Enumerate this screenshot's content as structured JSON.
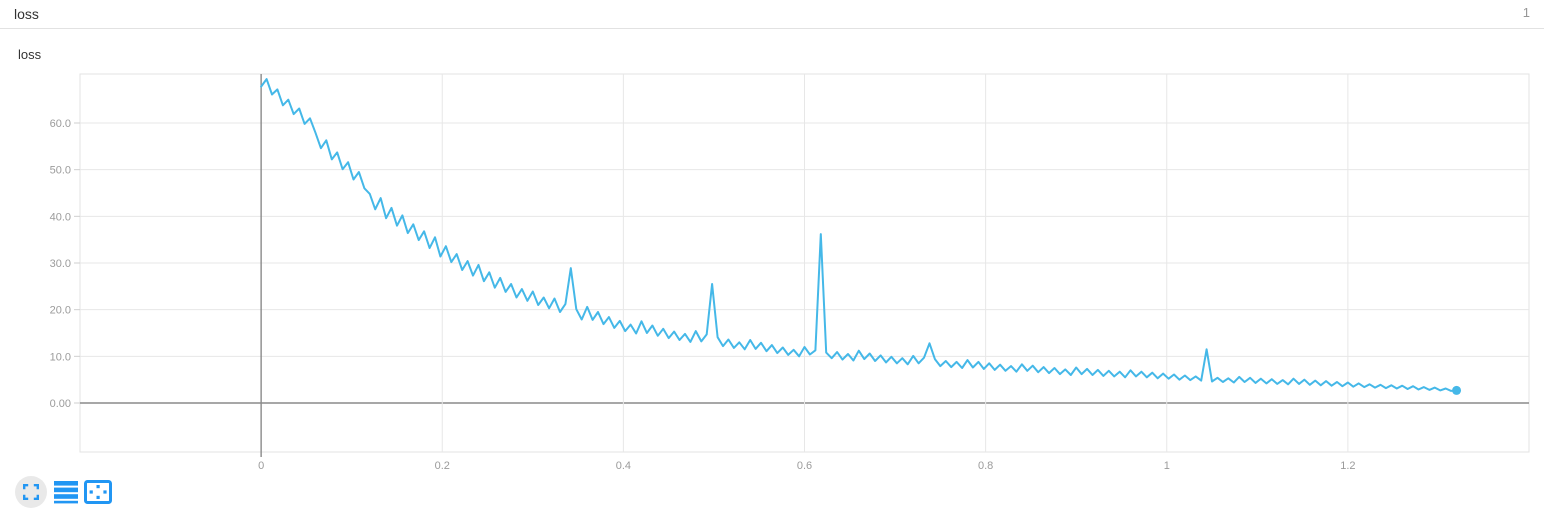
{
  "header": {
    "title": "loss",
    "page_indicator": "1"
  },
  "panel": {
    "title": "loss"
  },
  "toolbar": {
    "icons": [
      {
        "name": "fullscreen-icon"
      },
      {
        "name": "legend-list-icon"
      },
      {
        "name": "zoom-to-fit-icon"
      }
    ],
    "accent_color": "#2196f3"
  },
  "chart_data": {
    "type": "line",
    "title": "loss",
    "xlabel": "",
    "ylabel": "",
    "xlim": [
      -0.2,
      1.4
    ],
    "ylim": [
      -10.5,
      70.5
    ],
    "grid": true,
    "legend": "none",
    "xticks": [
      {
        "value": 0,
        "label": "0"
      },
      {
        "value": 0.2,
        "label": "0.2"
      },
      {
        "value": 0.4,
        "label": "0.4"
      },
      {
        "value": 0.6,
        "label": "0.6"
      },
      {
        "value": 0.8,
        "label": "0.8"
      },
      {
        "value": 1,
        "label": "1"
      },
      {
        "value": 1.2,
        "label": "1.2"
      }
    ],
    "yticks": [
      {
        "value": 0,
        "label": "0.00"
      },
      {
        "value": 10,
        "label": "10.0"
      },
      {
        "value": 20,
        "label": "20.0"
      },
      {
        "value": 30,
        "label": "30.0"
      },
      {
        "value": 40,
        "label": "40.0"
      },
      {
        "value": 50,
        "label": "50.0"
      },
      {
        "value": 60,
        "label": "60.0"
      }
    ],
    "style": {
      "grid_color": "#e7e7e7",
      "axis_color": "#8a8a8a",
      "border_color": "#e3e3e3",
      "tick_color": "#cfcfcf",
      "background": "#ffffff"
    },
    "series": [
      {
        "name": "loss",
        "color": "#45b8e8",
        "endpoint_dot": true,
        "x_start": 0,
        "x_step": 0.006,
        "values": [
          67.8,
          69.4,
          66.1,
          67.2,
          63.8,
          65.0,
          61.9,
          63.1,
          59.8,
          61.0,
          57.9,
          54.6,
          56.3,
          52.2,
          53.7,
          50.1,
          51.6,
          47.9,
          49.5,
          46.0,
          44.8,
          41.5,
          43.9,
          39.6,
          41.8,
          38.0,
          40.2,
          36.4,
          38.3,
          34.9,
          36.8,
          33.2,
          35.5,
          31.4,
          33.6,
          30.2,
          31.9,
          28.5,
          30.4,
          27.3,
          29.6,
          26.1,
          28.0,
          24.7,
          26.8,
          23.8,
          25.5,
          22.6,
          24.4,
          21.9,
          23.9,
          21.0,
          22.6,
          20.3,
          22.4,
          19.5,
          21.2,
          28.9,
          20.1,
          17.9,
          20.6,
          17.8,
          19.5,
          16.9,
          18.4,
          16.1,
          17.6,
          15.4,
          16.8,
          14.9,
          17.5,
          15.0,
          16.6,
          14.4,
          15.9,
          13.9,
          15.3,
          13.5,
          14.8,
          13.1,
          15.4,
          13.2,
          14.7,
          25.5,
          14.1,
          12.2,
          13.6,
          11.8,
          13.0,
          11.5,
          13.5,
          11.6,
          12.9,
          11.1,
          12.4,
          10.7,
          11.9,
          10.3,
          11.4,
          10.0,
          12.0,
          10.4,
          11.3,
          36.2,
          10.8,
          9.6,
          10.9,
          9.3,
          10.5,
          9.1,
          11.2,
          9.4,
          10.6,
          9.0,
          10.2,
          8.7,
          9.9,
          8.5,
          9.6,
          8.3,
          10.1,
          8.5,
          9.7,
          12.8,
          9.4,
          7.9,
          9.0,
          7.7,
          8.8,
          7.5,
          9.2,
          7.6,
          8.8,
          7.3,
          8.5,
          7.1,
          8.2,
          6.9,
          7.9,
          6.7,
          8.3,
          6.9,
          8.0,
          6.6,
          7.7,
          6.4,
          7.5,
          6.2,
          7.2,
          6.0,
          7.6,
          6.2,
          7.3,
          6.0,
          7.1,
          5.8,
          6.9,
          5.7,
          6.7,
          5.5,
          7.0,
          5.7,
          6.7,
          5.5,
          6.5,
          5.3,
          6.3,
          5.2,
          6.1,
          5.0,
          5.9,
          4.9,
          5.7,
          4.8,
          11.5,
          4.6,
          5.4,
          4.5,
          5.3,
          4.4,
          5.6,
          4.5,
          5.4,
          4.3,
          5.2,
          4.2,
          5.1,
          4.1,
          4.9,
          4.0,
          5.2,
          4.1,
          5.0,
          3.9,
          4.8,
          3.8,
          4.7,
          3.7,
          4.5,
          3.6,
          4.4,
          3.5,
          4.2,
          3.4,
          4.0,
          3.3,
          3.9,
          3.2,
          3.8,
          3.1,
          3.7,
          3.0,
          3.6,
          2.9,
          3.4,
          2.8,
          3.3,
          2.7,
          3.1,
          2.6,
          2.7
        ]
      }
    ]
  }
}
